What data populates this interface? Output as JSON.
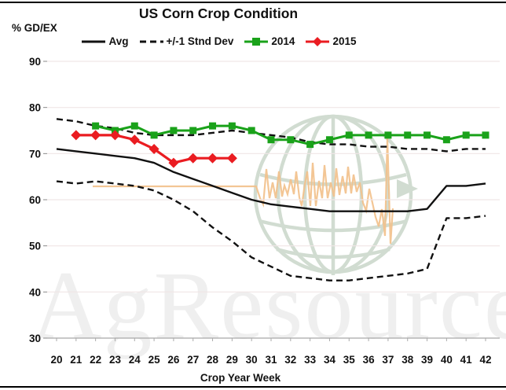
{
  "title": "US Corn Crop Condition",
  "y_axis_unit": "% GD/EX",
  "x_axis_title": "Crop Year Week",
  "legend": [
    {
      "label": "Avg",
      "swatch": "solid-line",
      "color": "#111111"
    },
    {
      "label": "+/-1 Stnd Dev",
      "swatch": "dashed-line",
      "color": "#111111"
    },
    {
      "label": "2014",
      "swatch": "line-square",
      "color": "#1aa21a"
    },
    {
      "label": "2015",
      "swatch": "line-diamond",
      "color": "#ea1c21"
    }
  ],
  "watermark": {
    "text": "AgResource",
    "logo": "globe-logo"
  },
  "colors": {
    "green_2014": "#1aa21a",
    "red_2015": "#ea1c21",
    "stat_lines": "#111111",
    "grid": "#f0e6e6",
    "axis": "#a8a8a8",
    "watermark_green": "#b5c8b5",
    "watermark_tan": "#f2c08a"
  },
  "chart_data": {
    "type": "line",
    "title": "US Corn Crop Condition",
    "xlabel": "Crop Year Week",
    "ylabel": "% GD/EX",
    "xlim": [
      20,
      42
    ],
    "ylim": [
      30,
      90
    ],
    "x_ticks": [
      20,
      21,
      22,
      23,
      24,
      25,
      26,
      27,
      28,
      29,
      30,
      31,
      32,
      33,
      34,
      35,
      36,
      37,
      38,
      39,
      40,
      41,
      42
    ],
    "y_ticks": [
      90,
      80,
      70,
      60,
      50,
      40,
      30
    ],
    "grid": "horizontal-light",
    "legend_position": "top-center",
    "series": [
      {
        "name": "Avg",
        "start_week": 20,
        "style": "solid",
        "marker": "none",
        "color": "#111111",
        "width": 2.4,
        "values": [
          71,
          70.5,
          70,
          69.5,
          69,
          68,
          66,
          64.5,
          63,
          61.5,
          60,
          59,
          58.5,
          58,
          57.5,
          57.5,
          57.5,
          57.5,
          57.5,
          58,
          63,
          63,
          63.5
        ]
      },
      {
        "name": "+1 Stnd Dev",
        "start_week": 20,
        "style": "dashed",
        "marker": "none",
        "color": "#111111",
        "width": 2.4,
        "values": [
          77.5,
          77,
          76,
          75.5,
          74.5,
          74,
          74,
          74,
          74.5,
          75,
          74.5,
          74,
          73.5,
          72.5,
          72,
          72,
          71.5,
          71.5,
          71,
          71,
          70.5,
          71,
          71
        ]
      },
      {
        "name": "-1 Stnd Dev",
        "start_week": 20,
        "style": "dashed",
        "marker": "none",
        "color": "#111111",
        "width": 2.4,
        "values": [
          64,
          63.5,
          64,
          63.5,
          63,
          62,
          60,
          57.5,
          54,
          51,
          47.5,
          45.5,
          43.5,
          43,
          42.5,
          42.5,
          43,
          43.5,
          44,
          45,
          56,
          56,
          56.5
        ]
      },
      {
        "name": "2014",
        "start_week": 22,
        "style": "solid",
        "marker": "square",
        "color": "#1aa21a",
        "width": 3,
        "values": [
          76,
          75,
          76,
          74,
          75,
          75,
          76,
          76,
          75,
          73,
          73,
          72,
          73,
          74,
          74,
          74,
          74,
          74,
          73,
          74,
          74
        ]
      },
      {
        "name": "2015",
        "start_week": 21,
        "style": "solid",
        "marker": "diamond",
        "color": "#ea1c21",
        "width": 3.2,
        "values": [
          74,
          74,
          74,
          73,
          71,
          68,
          69,
          69,
          69
        ]
      }
    ]
  }
}
